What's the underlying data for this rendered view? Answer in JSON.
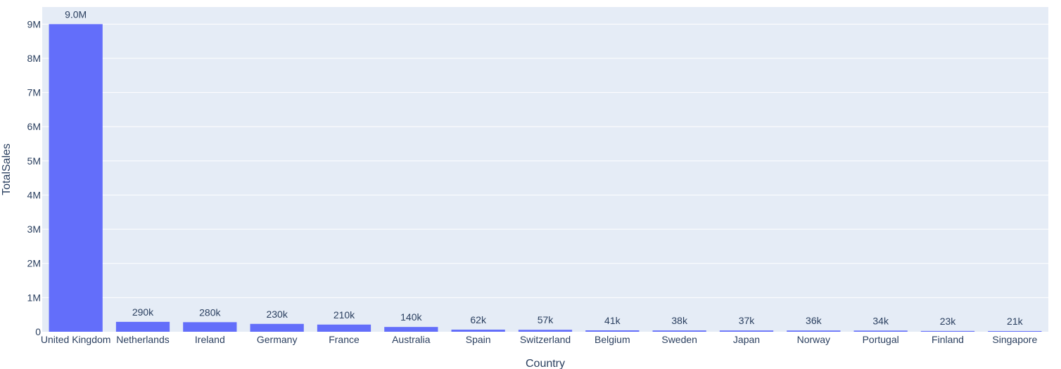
{
  "chart_data": {
    "type": "bar",
    "xlabel": "Country",
    "ylabel": "TotalSales",
    "categories": [
      "United Kingdom",
      "Netherlands",
      "Ireland",
      "Germany",
      "France",
      "Australia",
      "Spain",
      "Switzerland",
      "Belgium",
      "Sweden",
      "Japan",
      "Norway",
      "Portugal",
      "Finland",
      "Singapore"
    ],
    "values": [
      9000000,
      290000,
      280000,
      230000,
      210000,
      140000,
      62000,
      57000,
      41000,
      38000,
      37000,
      36000,
      34000,
      23000,
      21000
    ],
    "value_labels": [
      "9.0M",
      "290k",
      "280k",
      "230k",
      "210k",
      "140k",
      "62k",
      "57k",
      "41k",
      "38k",
      "37k",
      "36k",
      "34k",
      "23k",
      "21k"
    ],
    "ylim": [
      0,
      9500000
    ],
    "yticks": [
      0,
      1000000,
      2000000,
      3000000,
      4000000,
      5000000,
      6000000,
      7000000,
      8000000,
      9000000
    ],
    "ytick_labels": [
      "0",
      "1M",
      "2M",
      "3M",
      "4M",
      "5M",
      "6M",
      "7M",
      "8M",
      "9M"
    ],
    "grid": true,
    "colors": {
      "bar": "#636efa",
      "plot_bg": "#e5ecf6",
      "grid": "#ffffff",
      "text": "#2a3f5f"
    }
  }
}
